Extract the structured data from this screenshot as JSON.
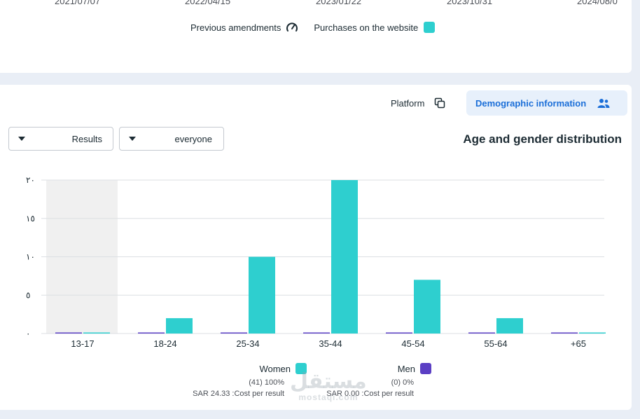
{
  "top_card": {
    "dates": [
      "2021/07/07",
      "2022/04/15",
      "2023/01/22",
      "2023/10/31",
      "2024/08/0"
    ],
    "legend": {
      "previous_amendments": "Previous amendments",
      "previous_amendments_icon": "gauge-icon",
      "purchases": "Purchases on the website",
      "purchases_color": "#2ecfcf"
    }
  },
  "tabs": {
    "platform": "Platform",
    "platform_icon": "copy-icon",
    "demographic": "Demographic information",
    "demographic_icon": "people-icon",
    "active": "demographic"
  },
  "filters": {
    "metric_value": "Results",
    "audience_value": "everyone"
  },
  "chart_title": "Age and gender distribution",
  "chart_data": {
    "type": "bar",
    "categories": [
      "13-17",
      "18-24",
      "25-34",
      "35-44",
      "45-54",
      "55-64",
      "+65"
    ],
    "series": [
      {
        "name": "Men",
        "color": "#5b3fc4",
        "values": [
          0,
          0,
          0,
          0,
          0,
          0,
          0
        ]
      },
      {
        "name": "Women",
        "color": "#2ecfcf",
        "values": [
          0,
          2,
          10,
          20,
          7,
          2,
          0
        ]
      }
    ],
    "y_ticks": [
      "٠",
      "٥",
      "١٠",
      "١٥",
      "٢٠"
    ],
    "ylim": [
      0,
      20
    ],
    "grid": true,
    "highlighted_category": "13-17",
    "legend": [
      {
        "name": "Women",
        "color": "#2ecfcf",
        "count": "(41) 100%",
        "cost": "SAR 24.33 :Cost per result"
      },
      {
        "name": "Men",
        "color": "#5b3fc4",
        "count": "(0) 0%",
        "cost": "SAR 0.00 :Cost per result"
      }
    ]
  },
  "watermark": {
    "arabic": "مستقل",
    "latin": "mostaql.com"
  }
}
